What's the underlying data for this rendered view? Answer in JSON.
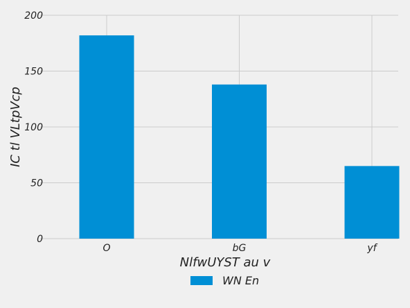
{
  "chart_data": {
    "type": "bar",
    "categories": [
      "O",
      "bG",
      "yf"
    ],
    "series": [
      {
        "name": "WN En",
        "values": [
          182,
          138,
          65
        ],
        "color": "#008fd5"
      }
    ],
    "xlabel": "NlfwUYST au v",
    "ylabel": "IC  tl VLtpVcp",
    "ylim": [
      0,
      200
    ],
    "yticks": [
      0,
      50,
      100,
      150,
      200
    ],
    "grid": true,
    "legend_position": "bottom-center",
    "background_color": "#f0f0f0",
    "grid_color": "#cbcbcb"
  }
}
